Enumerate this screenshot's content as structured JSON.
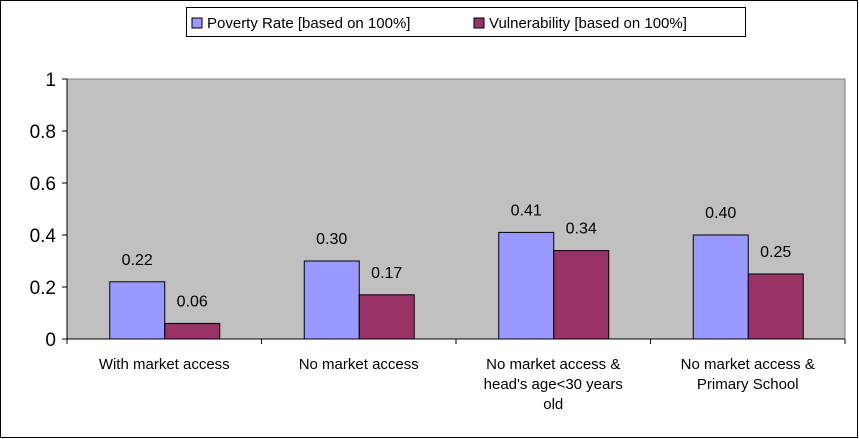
{
  "chart_data": {
    "type": "bar",
    "title": "",
    "xlabel": "",
    "ylabel": "",
    "ylim": [
      0,
      1
    ],
    "yticks": [
      0,
      0.2,
      0.4,
      0.6,
      0.8,
      1
    ],
    "ytick_labels": [
      "0",
      "0.2",
      "0.4",
      "0.6",
      "0.8",
      "1"
    ],
    "grid": false,
    "legend_position": "top-center",
    "plot_background": "#c0c0c0",
    "categories": [
      [
        "With market access"
      ],
      [
        "No market access"
      ],
      [
        "No market access &",
        "head's age<30 years",
        "old"
      ],
      [
        "No market access &",
        "Primary School"
      ]
    ],
    "series": [
      {
        "name": "Poverty Rate [based on 100%]",
        "color": "#9999ff",
        "values": [
          0.22,
          0.3,
          0.41,
          0.4
        ],
        "labels": [
          "0.22",
          "0.30",
          "0.41",
          "0.40"
        ]
      },
      {
        "name": "Vulnerability [based on 100%]",
        "color": "#993366",
        "values": [
          0.06,
          0.17,
          0.34,
          0.25
        ],
        "labels": [
          "0.06",
          "0.17",
          "0.34",
          "0.25"
        ]
      }
    ]
  }
}
